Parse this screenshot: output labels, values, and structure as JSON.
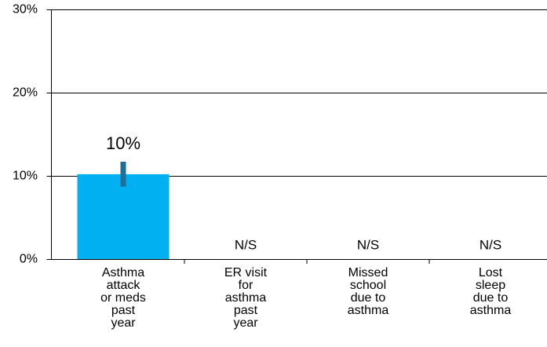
{
  "chart_data": {
    "type": "bar",
    "categories": [
      [
        "Asthma",
        "attack",
        "or meds",
        "past",
        "year"
      ],
      [
        "ER visit",
        "for",
        "asthma",
        "past",
        "year"
      ],
      [
        "Missed",
        "school",
        "due to",
        "asthma"
      ],
      [
        "Lost",
        "sleep",
        "due to",
        "asthma"
      ]
    ],
    "values": [
      10.2,
      null,
      null,
      null
    ],
    "value_labels": [
      "10%",
      "N/S",
      "N/S",
      "N/S"
    ],
    "errors": [
      1.5,
      null,
      null,
      null
    ],
    "color": "#00b0f0",
    "error_color": "#1f6f99",
    "ylim": [
      0,
      30
    ],
    "yticks": [
      {
        "value": 0,
        "label": "0%"
      },
      {
        "value": 10,
        "label": "10%"
      },
      {
        "value": 20,
        "label": "20%"
      },
      {
        "value": 30,
        "label": "30%"
      }
    ],
    "grid": true
  }
}
